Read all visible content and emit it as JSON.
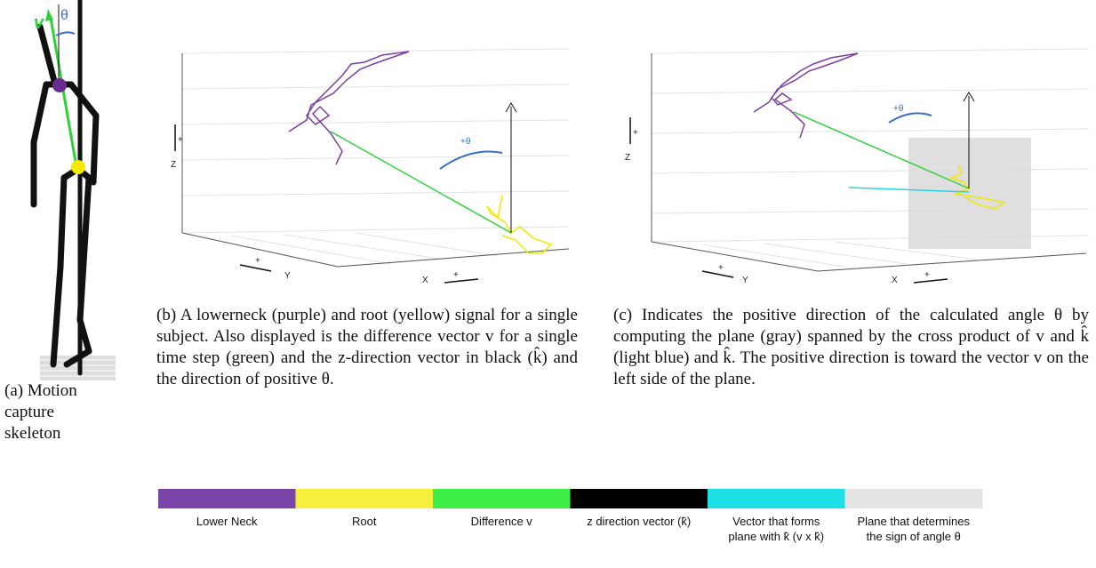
{
  "panel_a": {
    "v_label": "v",
    "theta_label": "θ",
    "caption": "(a) Motion capture skeleton"
  },
  "panel_b": {
    "theta_label": "+θ",
    "z_sign": "+",
    "z_label": "Z",
    "y_sign": "+",
    "y_label": "Y",
    "x_sign": "+",
    "x_label": "X",
    "caption": "(b) A lowerneck (purple) and root (yellow) signal for a single subject. Also displayed is the difference vector v for a single time step (green) and the z-direction vector in black (k̂) and the direction of positive θ."
  },
  "panel_c": {
    "theta_label": "+θ",
    "z_sign": "+",
    "z_label": "Z",
    "y_sign": "+",
    "y_label": "Y",
    "x_sign": "+",
    "x_label": "X",
    "caption": "(c) Indicates the positive direction of the calculated angle θ by computing the plane (gray) spanned by the cross product of v and k̂ (light blue) and k̂. The positive direction is toward the vector v on the left side of the plane."
  },
  "legend": [
    {
      "color": "#7b44a8",
      "label": "Lower Neck"
    },
    {
      "color": "#f5f03c",
      "label": "Root"
    },
    {
      "color": "#3cee45",
      "label": "Difference v"
    },
    {
      "color": "#000000",
      "label": "z direction vector (k̂)"
    },
    {
      "color": "#1de0e6",
      "label": "Vector that forms plane with k̂ (v x k̂)"
    },
    {
      "color": "#e4e4e4",
      "label": "Plane that determines the sign of angle θ"
    }
  ]
}
